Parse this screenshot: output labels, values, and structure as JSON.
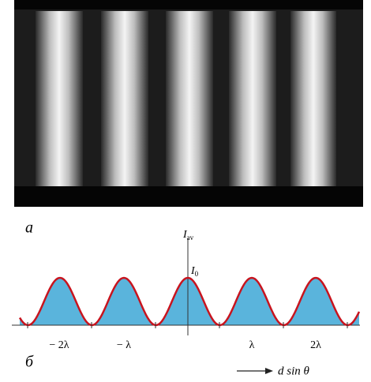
{
  "panels": [
    {
      "label": "a"
    },
    {
      "label": "б",
      "y_axis_label": {
        "symbol": "I",
        "subscript": "av"
      },
      "peak_label": {
        "symbol": "I",
        "subscript": "0"
      },
      "x_tick_labels": [
        "− 2λ",
        "− λ",
        "λ",
        "2λ"
      ],
      "x_axis_label": "d sin θ"
    }
  ]
}
